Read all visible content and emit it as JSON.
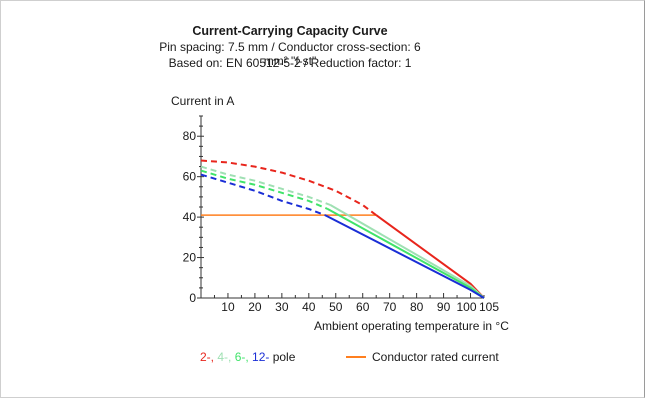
{
  "chart_data": {
    "type": "line",
    "title": "Current-Carrying Capacity Curve",
    "subtitle_lines": [
      "Pin spacing: 7.5 mm / Conductor cross-section: 6 mm² \"f-st\"",
      "Based on: EN 60512-5-2 / Reduction factor: 1"
    ],
    "ylabel": "Current in A",
    "xlabel": "Ambient operating temperature in °C",
    "xlim": [
      0,
      105
    ],
    "ylim": [
      0,
      90
    ],
    "xticks": [
      10,
      20,
      30,
      40,
      50,
      60,
      70,
      80,
      90,
      100,
      105
    ],
    "yticks": [
      0,
      20,
      40,
      60,
      80
    ],
    "grid": false,
    "series": [
      {
        "name": "2-",
        "color": "#e8251c",
        "dashed": [
          [
            0,
            68
          ],
          [
            10,
            67
          ],
          [
            20,
            65
          ],
          [
            30,
            62
          ],
          [
            40,
            58
          ],
          [
            50,
            53
          ],
          [
            60,
            46
          ],
          [
            65,
            41
          ]
        ],
        "solid": [
          [
            65,
            41
          ],
          [
            100,
            7
          ],
          [
            105,
            0
          ]
        ]
      },
      {
        "name": "4-",
        "color": "#9fe0b3",
        "dashed": [
          [
            0,
            65
          ],
          [
            10,
            61
          ],
          [
            20,
            58
          ],
          [
            30,
            54
          ],
          [
            40,
            50
          ],
          [
            48,
            46
          ]
        ],
        "solid": [
          [
            48,
            46
          ],
          [
            100,
            6
          ],
          [
            105,
            0
          ]
        ]
      },
      {
        "name": "6-",
        "color": "#40e36a",
        "dashed": [
          [
            0,
            63
          ],
          [
            10,
            59
          ],
          [
            20,
            56
          ],
          [
            30,
            52
          ],
          [
            40,
            48
          ],
          [
            47,
            44
          ]
        ],
        "solid": [
          [
            47,
            44
          ],
          [
            100,
            5
          ],
          [
            105,
            0
          ]
        ]
      },
      {
        "name": "12-",
        "color": "#1a2ed6",
        "dashed": [
          [
            0,
            61
          ],
          [
            10,
            57
          ],
          [
            20,
            53
          ],
          [
            30,
            48
          ],
          [
            40,
            44
          ],
          [
            46,
            41
          ]
        ],
        "solid": [
          [
            46,
            41
          ],
          [
            100,
            4
          ],
          [
            105,
            0
          ]
        ]
      },
      {
        "name": "Conductor rated current",
        "color": "#ff7f1f",
        "solid": [
          [
            0,
            41
          ],
          [
            65,
            41
          ]
        ]
      }
    ]
  },
  "legend": {
    "pole_parts": [
      {
        "text": "2-",
        "color": "#e8251c"
      },
      {
        "text": ", ",
        "color": "#e8251c"
      },
      {
        "text": "4-",
        "color": "#9fe0b3"
      },
      {
        "text": ", ",
        "color": "#9fe0b3"
      },
      {
        "text": "6-",
        "color": "#40e36a"
      },
      {
        "text": ", ",
        "color": "#40e36a"
      },
      {
        "text": "12-",
        "color": "#1a2ed6"
      },
      {
        "text": " pole",
        "color": "#1a1a1a"
      }
    ],
    "conductor_label": "Conductor rated current"
  }
}
